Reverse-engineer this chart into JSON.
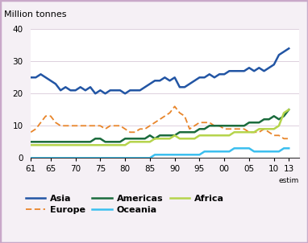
{
  "years": [
    61,
    62,
    63,
    64,
    65,
    66,
    67,
    68,
    69,
    70,
    71,
    72,
    73,
    74,
    75,
    76,
    77,
    78,
    79,
    80,
    81,
    82,
    83,
    84,
    85,
    86,
    87,
    88,
    89,
    90,
    91,
    92,
    93,
    94,
    95,
    96,
    97,
    98,
    99,
    100,
    101,
    102,
    103,
    104,
    105,
    106,
    107,
    108,
    109,
    110,
    111,
    112,
    113
  ],
  "Asia": [
    25,
    25,
    26,
    25,
    24,
    23,
    21,
    22,
    21,
    21,
    22,
    21,
    22,
    20,
    21,
    20,
    21,
    21,
    21,
    20,
    21,
    21,
    21,
    22,
    23,
    24,
    24,
    25,
    24,
    25,
    22,
    22,
    23,
    24,
    25,
    25,
    26,
    25,
    26,
    26,
    27,
    27,
    27,
    27,
    28,
    27,
    28,
    27,
    28,
    29,
    32,
    33,
    34
  ],
  "Europe": [
    8,
    9,
    11,
    13,
    13,
    11,
    10,
    10,
    10,
    10,
    10,
    10,
    10,
    10,
    10,
    9,
    10,
    10,
    10,
    9,
    8,
    8,
    9,
    9,
    10,
    11,
    12,
    13,
    14,
    16,
    14,
    13,
    9,
    10,
    11,
    11,
    11,
    10,
    10,
    9,
    9,
    9,
    9,
    9,
    8,
    8,
    8,
    9,
    8,
    7,
    7,
    6,
    6
  ],
  "Americas": [
    5,
    5,
    5,
    5,
    5,
    5,
    5,
    5,
    5,
    5,
    5,
    5,
    5,
    6,
    6,
    5,
    5,
    5,
    5,
    6,
    6,
    6,
    6,
    6,
    7,
    6,
    7,
    7,
    7,
    7,
    8,
    8,
    8,
    8,
    9,
    9,
    10,
    10,
    10,
    10,
    10,
    10,
    10,
    10,
    11,
    11,
    11,
    12,
    12,
    13,
    12,
    13,
    15
  ],
  "Oceania": [
    0,
    0,
    0,
    0,
    0,
    0,
    0,
    0,
    0,
    0,
    0,
    0,
    0,
    0,
    0,
    0,
    0,
    0,
    0,
    0,
    0,
    0,
    0,
    0,
    0,
    1,
    1,
    1,
    1,
    1,
    1,
    1,
    1,
    1,
    1,
    2,
    2,
    2,
    2,
    2,
    2,
    3,
    3,
    3,
    3,
    2,
    2,
    2,
    2,
    2,
    2,
    3,
    3
  ],
  "Africa": [
    4,
    4,
    4,
    4,
    4,
    4,
    4,
    4,
    4,
    4,
    4,
    4,
    4,
    4,
    4,
    4,
    4,
    4,
    4,
    4,
    5,
    5,
    5,
    5,
    5,
    6,
    6,
    6,
    6,
    7,
    6,
    6,
    6,
    6,
    7,
    7,
    7,
    7,
    7,
    7,
    7,
    8,
    8,
    8,
    8,
    8,
    9,
    9,
    9,
    9,
    10,
    14,
    15
  ],
  "colors": {
    "Asia": "#2255a4",
    "Europe": "#e8852a",
    "Americas": "#1a6b3c",
    "Oceania": "#3bbfef",
    "Africa": "#b5d44b"
  },
  "ylabel": "Million tonnes",
  "ylim": [
    0,
    40
  ],
  "yticks": [
    0,
    10,
    20,
    30,
    40
  ],
  "xtick_labels": [
    "61",
    "65",
    "70",
    "75",
    "80",
    "85",
    "90",
    "95",
    "00",
    "05",
    "10",
    "13"
  ],
  "xtick_positions": [
    61,
    65,
    70,
    75,
    80,
    85,
    90,
    95,
    100,
    105,
    110,
    113
  ],
  "plot_bg": "#ffffff",
  "fig_bg": "#f5f0f5",
  "border_color": "#c9a8c9",
  "grid_color": "#ddd0dd",
  "estim_label": "estim"
}
